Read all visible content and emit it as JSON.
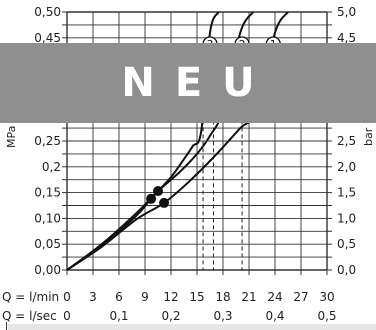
{
  "chart_data": {
    "type": "line",
    "xlabel_min": "Q = l/min",
    "xlabel_sec": "Q = l/sec",
    "ylabel_left": "MPa",
    "ylabel_right": "bar",
    "xlim": [
      0,
      30
    ],
    "ylim": [
      0,
      0.5
    ],
    "grid": true,
    "x_ticks_min": [
      "0",
      "3",
      "6",
      "9",
      "12",
      "15",
      "18",
      "21",
      "24",
      "27",
      "30"
    ],
    "x_ticks_sec": [
      {
        "value": 0,
        "label": "0"
      },
      {
        "value": 6,
        "label": "0,1"
      },
      {
        "value": 12,
        "label": "0,2"
      },
      {
        "value": 18,
        "label": "0,3"
      },
      {
        "value": 24,
        "label": "0,4"
      },
      {
        "value": 30,
        "label": "0,5"
      }
    ],
    "y_ticks_left": [
      {
        "value": 0.0,
        "label": "0,00"
      },
      {
        "value": 0.05,
        "label": "0,05"
      },
      {
        "value": 0.1,
        "label": "0,10"
      },
      {
        "value": 0.15,
        "label": "0,15"
      },
      {
        "value": 0.2,
        "label": "0,2"
      },
      {
        "value": 0.25,
        "label": "0,25"
      },
      {
        "value": 0.45,
        "label": "0,45"
      },
      {
        "value": 0.5,
        "label": "0,50"
      }
    ],
    "y_ticks_right": [
      {
        "value": 0.0,
        "label": "0,0"
      },
      {
        "value": 0.05,
        "label": "0,5"
      },
      {
        "value": 0.1,
        "label": "1,0"
      },
      {
        "value": 0.15,
        "label": "1,5"
      },
      {
        "value": 0.2,
        "label": "2,0"
      },
      {
        "value": 0.25,
        "label": "2,5"
      },
      {
        "value": 0.45,
        "label": "4,5"
      },
      {
        "value": 0.5,
        "label": "5,0"
      }
    ],
    "series": [
      {
        "name": "1",
        "points": [
          [
            0,
            0
          ],
          [
            4,
            0.045
          ],
          [
            8,
            0.098
          ],
          [
            11.2,
            0.13
          ],
          [
            14,
            0.17
          ],
          [
            17,
            0.22
          ],
          [
            20,
            0.275
          ],
          [
            22,
            0.31
          ],
          [
            24,
            0.46
          ],
          [
            25.5,
            0.5
          ]
        ]
      },
      {
        "name": "2",
        "points": [
          [
            0,
            0
          ],
          [
            4,
            0.05
          ],
          [
            8,
            0.11
          ],
          [
            10.5,
            0.153
          ],
          [
            13,
            0.19
          ],
          [
            15,
            0.225
          ],
          [
            16.5,
            0.26
          ],
          [
            18,
            0.31
          ],
          [
            20,
            0.46
          ],
          [
            21.5,
            0.5
          ]
        ]
      },
      {
        "name": "3",
        "points": [
          [
            0,
            0
          ],
          [
            4,
            0.048
          ],
          [
            8,
            0.105
          ],
          [
            9.7,
            0.138
          ],
          [
            12,
            0.18
          ],
          [
            13.5,
            0.215
          ],
          [
            14.5,
            0.24
          ],
          [
            15.5,
            0.27
          ],
          [
            16.5,
            0.46
          ],
          [
            17.5,
            0.5
          ]
        ]
      }
    ],
    "markers": [
      {
        "x": 11.2,
        "y": 0.13
      },
      {
        "x": 10.5,
        "y": 0.153
      },
      {
        "x": 9.7,
        "y": 0.138
      }
    ],
    "series_labels": [
      {
        "label": "3",
        "x": 16.5,
        "y": 0.438
      },
      {
        "label": "2",
        "x": 20.2,
        "y": 0.438
      },
      {
        "label": "1",
        "x": 23.8,
        "y": 0.438
      }
    ],
    "dashed_x": [
      15.7,
      16.9,
      20.2
    ]
  },
  "badge": {
    "text": "NEU"
  }
}
